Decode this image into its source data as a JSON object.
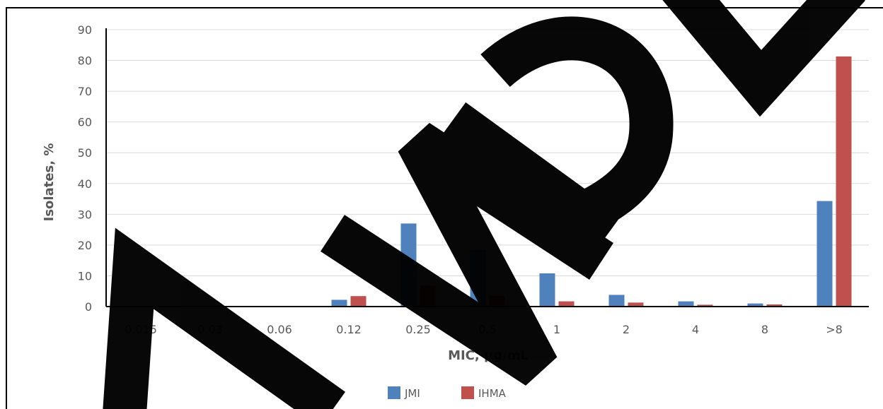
{
  "chart_data": {
    "type": "bar",
    "categories": [
      "0.015",
      "0.03",
      "0.06",
      "0.12",
      "0.25",
      "0.5",
      "1",
      "2",
      "4",
      "8",
      ">8"
    ],
    "series": [
      {
        "name": "JMI",
        "color": "#4f81bd",
        "values": [
          0,
          0,
          0,
          2.2,
          27.0,
          18.5,
          10.8,
          3.8,
          1.7,
          1.0,
          34.3
        ]
      },
      {
        "name": "IHMA",
        "color": "#c0504d",
        "values": [
          0,
          0,
          0,
          3.4,
          6.8,
          3.5,
          1.7,
          1.3,
          0.6,
          0.7,
          81.3
        ]
      }
    ],
    "xlabel": "MIC, µg/mL",
    "ylabel": "Isolates, %",
    "ylim": [
      0,
      90
    ],
    "yticks": [
      0,
      10,
      20,
      30,
      40,
      50,
      60,
      70,
      80,
      90
    ],
    "grid": true,
    "legend_position": "bottom",
    "watermark": "SAMPLE"
  }
}
